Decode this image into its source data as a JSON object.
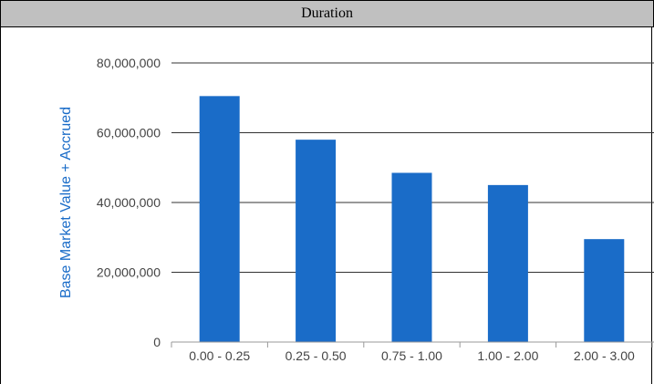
{
  "header": {
    "title": "Duration"
  },
  "chart_data": {
    "type": "bar",
    "title": "",
    "xlabel": "",
    "ylabel": "Base Market Value + Accrued",
    "categories": [
      "0.00 - 0.25",
      "0.25 - 0.50",
      "0.75 - 1.00",
      "1.00 - 2.00",
      "2.00 - 3.00"
    ],
    "values": [
      70500000,
      58000000,
      48500000,
      45000000,
      29500000
    ],
    "ylim": [
      0,
      80000000
    ],
    "yticks": [
      "0",
      "20,000,000",
      "40,000,000",
      "60,000,000",
      "80,000,000"
    ],
    "ytick_values": [
      0,
      20000000,
      40000000,
      60000000,
      80000000
    ],
    "grid": true,
    "legend": "none",
    "colors": {
      "bar": "#1a6cc8",
      "ylabel": "#1a6cc8",
      "grid": "#333333"
    }
  }
}
